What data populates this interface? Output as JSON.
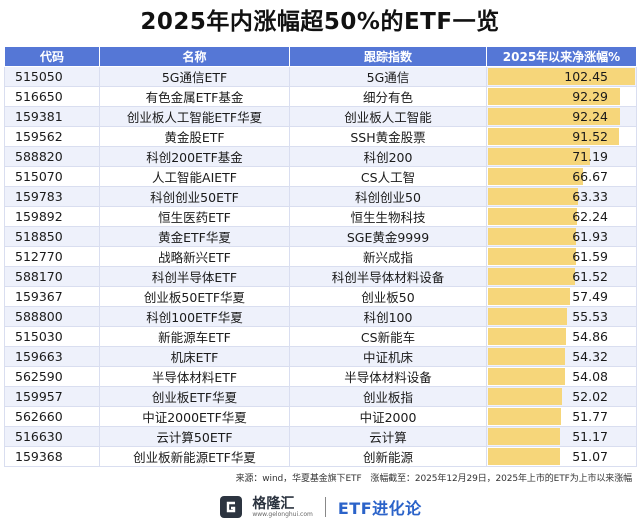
{
  "title": "2025年内涨幅超50%的ETF一览",
  "table": {
    "headers": [
      "代码",
      "名称",
      "跟踪指数",
      "2025年以来净涨幅%"
    ],
    "max_value": 102.45,
    "bar_color": "#f6d67a",
    "header_color": "#5577d6",
    "rows": [
      {
        "code": "515050",
        "name": "5G通信ETF",
        "index": "5G通信",
        "pct": "102.45"
      },
      {
        "code": "516650",
        "name": "有色金属ETF基金",
        "index": "细分有色",
        "pct": "92.29"
      },
      {
        "code": "159381",
        "name": "创业板人工智能ETF华夏",
        "index": "创业板人工智能",
        "pct": "92.24"
      },
      {
        "code": "159562",
        "name": "黄金股ETF",
        "index": "SSH黄金股票",
        "pct": "91.52"
      },
      {
        "code": "588820",
        "name": "科创200ETF基金",
        "index": "科创200",
        "pct": "71.19"
      },
      {
        "code": "515070",
        "name": "人工智能AIETF",
        "index": "CS人工智",
        "pct": "66.67"
      },
      {
        "code": "159783",
        "name": "科创创业50ETF",
        "index": "科创创业50",
        "pct": "63.33"
      },
      {
        "code": "159892",
        "name": "恒生医药ETF",
        "index": "恒生生物科技",
        "pct": "62.24"
      },
      {
        "code": "518850",
        "name": "黄金ETF华夏",
        "index": "SGE黄金9999",
        "pct": "61.93"
      },
      {
        "code": "512770",
        "name": "战略新兴ETF",
        "index": "新兴成指",
        "pct": "61.59"
      },
      {
        "code": "588170",
        "name": "科创半导体ETF",
        "index": "科创半导体材料设备",
        "pct": "61.52"
      },
      {
        "code": "159367",
        "name": "创业板50ETF华夏",
        "index": "创业板50",
        "pct": "57.49"
      },
      {
        "code": "588800",
        "name": "科创100ETF华夏",
        "index": "科创100",
        "pct": "55.53"
      },
      {
        "code": "515030",
        "name": "新能源车ETF",
        "index": "CS新能车",
        "pct": "54.86"
      },
      {
        "code": "159663",
        "name": "机床ETF",
        "index": "中证机床",
        "pct": "54.32"
      },
      {
        "code": "562590",
        "name": "半导体材料ETF",
        "index": "半导体材料设备",
        "pct": "54.08"
      },
      {
        "code": "159957",
        "name": "创业板ETF华夏",
        "index": "创业板指",
        "pct": "52.02"
      },
      {
        "code": "562660",
        "name": "中证2000ETF华夏",
        "index": "中证2000",
        "pct": "51.77"
      },
      {
        "code": "516630",
        "name": "云计算50ETF",
        "index": "云计算",
        "pct": "51.17"
      },
      {
        "code": "159368",
        "name": "创业板新能源ETF华夏",
        "index": "创新能源",
        "pct": "51.07"
      }
    ]
  },
  "source": "来源：wind，华夏基金旗下ETF　涨幅截至：2025年12月29日，2025年上市的ETF为上市以来涨幅",
  "footer": {
    "logo_icon": "gelonghui-g-icon",
    "logo_text": "格隆汇",
    "logo_sub": "www.gelonghui.com",
    "brand": "ETF进化论"
  }
}
